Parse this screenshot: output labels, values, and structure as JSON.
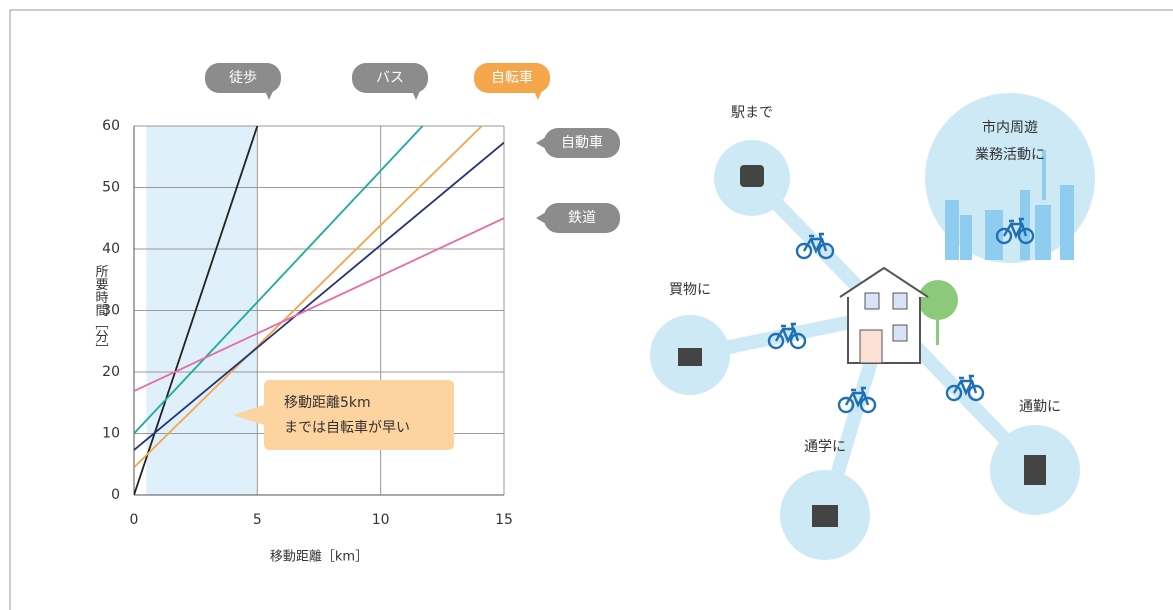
{
  "chart_data": {
    "type": "line",
    "xlabel": "移動距離［km］",
    "ylabel": "所要時間［分］",
    "xlim": [
      0,
      15
    ],
    "xticks": [
      0,
      5,
      10,
      15
    ],
    "ylim": [
      0,
      60
    ],
    "yticks": [
      0,
      10,
      20,
      30,
      40,
      50,
      60
    ],
    "grid": true,
    "highlight": [
      0.5,
      5
    ],
    "series": [
      {
        "name": "徒歩",
        "color": "#222222",
        "x": [
          0,
          5
        ],
        "values": [
          0,
          60
        ]
      },
      {
        "name": "バス",
        "color": "#1aab9b",
        "x": [
          0,
          11.7
        ],
        "values": [
          10,
          60
        ]
      },
      {
        "name": "自転車",
        "color": "#f5a54a",
        "x": [
          0,
          14.1
        ],
        "values": [
          4.5,
          60
        ]
      },
      {
        "name": "自動車",
        "color": "#25317a",
        "x": [
          0,
          15
        ],
        "values": [
          7.3,
          57.3
        ]
      },
      {
        "name": "鉄道",
        "color": "#e96aa6",
        "x": [
          0,
          15
        ],
        "values": [
          16.9,
          45
        ]
      }
    ],
    "annotation": [
      "移動距離5km",
      "までは自転車が早い"
    ]
  },
  "diagram": {
    "nodes": [
      {
        "label": [
          "駅まで"
        ]
      },
      {
        "label": [
          "市内周遊",
          "業務活動に"
        ]
      },
      {
        "label": [
          "買物に"
        ]
      },
      {
        "label": [
          "通学に"
        ]
      },
      {
        "label": [
          "通勤に"
        ]
      }
    ]
  }
}
